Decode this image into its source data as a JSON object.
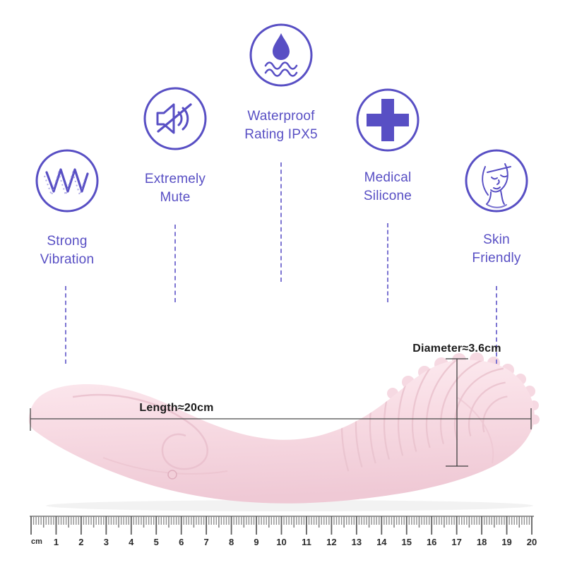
{
  "page": {
    "background": "#ffffff",
    "accent_purple": "#584fc4",
    "dash_purple": "#7d75d2",
    "measure_line_gray": "#4a4a4a",
    "product_pink": "#f8dce4"
  },
  "features": [
    {
      "icon": "vibration-wave-icon",
      "line1": "Strong",
      "line2": "Vibration"
    },
    {
      "icon": "muted-speaker-icon",
      "line1": "Extremely",
      "line2": "Mute"
    },
    {
      "icon": "water-drop-icon",
      "line1": "Waterproof",
      "line2": "Rating IPX5"
    },
    {
      "icon": "medical-cross-icon",
      "line1": "Medical",
      "line2": "Silicone"
    },
    {
      "icon": "female-face-icon",
      "line1": "Skin",
      "line2": "Friendly"
    }
  ],
  "measurements": {
    "length_label": "Length≈20cm",
    "diameter_label": "Diameter≈3.6cm"
  },
  "ruler": {
    "unit_label": "cm",
    "numbers": [
      "1",
      "2",
      "3",
      "4",
      "5",
      "6",
      "7",
      "8",
      "9",
      "10",
      "11",
      "12",
      "13",
      "14",
      "15",
      "16",
      "17",
      "18",
      "19",
      "20"
    ]
  }
}
